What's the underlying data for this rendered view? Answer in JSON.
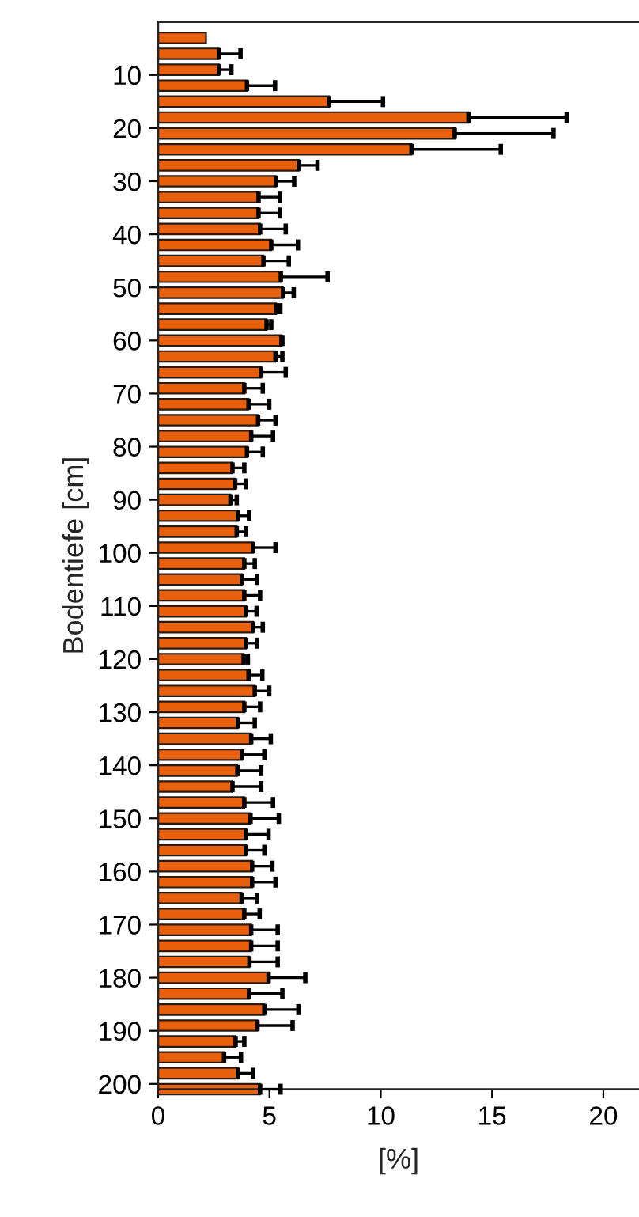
{
  "chart_data": {
    "type": "bar",
    "orientation": "horizontal",
    "xlabel": "[%]",
    "ylabel": "Bodentiefe [cm]",
    "x": [
      3,
      6,
      9,
      12,
      15,
      18,
      21,
      24,
      27,
      30,
      33,
      36,
      39,
      42,
      45,
      48,
      51,
      54,
      57,
      60,
      63,
      66,
      69,
      72,
      75,
      78,
      81,
      84,
      87,
      90,
      93,
      96,
      99,
      102,
      105,
      108,
      111,
      114,
      117,
      120,
      123,
      126,
      129,
      132,
      135,
      138,
      141,
      144,
      147,
      150,
      153,
      156,
      159,
      162,
      165,
      168,
      171,
      174,
      177,
      180,
      183,
      186,
      189,
      192,
      195,
      198,
      201
    ],
    "series": [
      {
        "color": "#e8600c",
        "values": [
          2.15,
          2.74,
          2.74,
          3.99,
          7.68,
          13.94,
          13.32,
          11.38,
          6.32,
          5.3,
          4.51,
          4.51,
          4.58,
          5.08,
          4.73,
          5.51,
          5.61,
          5.3,
          4.87,
          5.54,
          5.27,
          4.63,
          3.87,
          4.06,
          4.49,
          4.18,
          3.99,
          3.34,
          3.46,
          3.25,
          3.58,
          3.53,
          4.27,
          3.87,
          3.77,
          3.87,
          3.94,
          4.27,
          3.94,
          3.84,
          4.06,
          4.34,
          3.87,
          3.58,
          4.18,
          3.77,
          3.56,
          3.34,
          3.87,
          4.15,
          3.94,
          3.94,
          4.22,
          4.22,
          3.75,
          3.87,
          4.18,
          4.18,
          4.1,
          4.96,
          4.08,
          4.77,
          4.46,
          3.48,
          2.96,
          3.58,
          4.58
        ],
        "errors": [
          null,
          [
            2.74,
            3.7
          ],
          [
            2.74,
            3.29
          ],
          [
            3.99,
            5.25
          ],
          [
            7.68,
            10.1
          ],
          [
            13.94,
            18.35
          ],
          [
            13.32,
            17.76
          ],
          [
            11.38,
            15.39
          ],
          [
            6.32,
            7.16
          ],
          [
            5.3,
            6.11
          ],
          [
            4.51,
            5.47
          ],
          [
            4.51,
            5.47
          ],
          [
            4.58,
            5.73
          ],
          [
            5.08,
            6.28
          ],
          [
            4.73,
            5.87
          ],
          [
            5.51,
            7.61
          ],
          [
            5.61,
            6.09
          ],
          [
            5.3,
            5.49
          ],
          [
            4.87,
            5.08
          ],
          [
            5.54,
            5.58
          ],
          [
            5.27,
            5.58
          ],
          [
            4.63,
            5.73
          ],
          [
            3.87,
            4.7
          ],
          [
            4.06,
            4.99
          ],
          [
            4.49,
            5.27
          ],
          [
            4.18,
            5.16
          ],
          [
            3.99,
            4.7
          ],
          [
            3.34,
            3.87
          ],
          [
            3.46,
            3.94
          ],
          [
            3.25,
            3.53
          ],
          [
            3.58,
            4.08
          ],
          [
            3.53,
            3.94
          ],
          [
            4.27,
            5.27
          ],
          [
            3.87,
            4.34
          ],
          [
            3.77,
            4.44
          ],
          [
            3.87,
            4.58
          ],
          [
            3.94,
            4.42
          ],
          [
            4.27,
            4.7
          ],
          [
            3.94,
            4.44
          ],
          [
            3.84,
            4.03
          ],
          [
            4.06,
            4.68
          ],
          [
            4.34,
            4.99
          ],
          [
            3.87,
            4.58
          ],
          [
            3.58,
            4.34
          ],
          [
            4.18,
            5.06
          ],
          [
            3.77,
            4.77
          ],
          [
            3.56,
            4.63
          ],
          [
            3.34,
            4.63
          ],
          [
            3.87,
            5.16
          ],
          [
            4.15,
            5.42
          ],
          [
            3.94,
            4.96
          ],
          [
            3.94,
            4.77
          ],
          [
            4.22,
            5.13
          ],
          [
            4.22,
            5.27
          ],
          [
            3.75,
            4.44
          ],
          [
            3.87,
            4.56
          ],
          [
            4.18,
            5.37
          ],
          [
            4.18,
            5.37
          ],
          [
            4.1,
            5.37
          ],
          [
            4.96,
            6.61
          ],
          [
            4.08,
            5.58
          ],
          [
            4.77,
            6.3
          ],
          [
            4.46,
            6.04
          ],
          [
            3.48,
            3.87
          ],
          [
            2.96,
            3.72
          ],
          [
            3.58,
            4.27
          ],
          [
            4.58,
            5.5
          ]
        ]
      }
    ],
    "xlim": [
      0,
      21.6
    ],
    "xticks": [
      0,
      5,
      10,
      15,
      20
    ],
    "ylim": [
      201,
      0
    ],
    "yticks": [
      10,
      20,
      30,
      40,
      50,
      60,
      70,
      80,
      90,
      100,
      110,
      120,
      130,
      140,
      150,
      160,
      170,
      180,
      190,
      200
    ],
    "grid": false,
    "legend": false
  }
}
